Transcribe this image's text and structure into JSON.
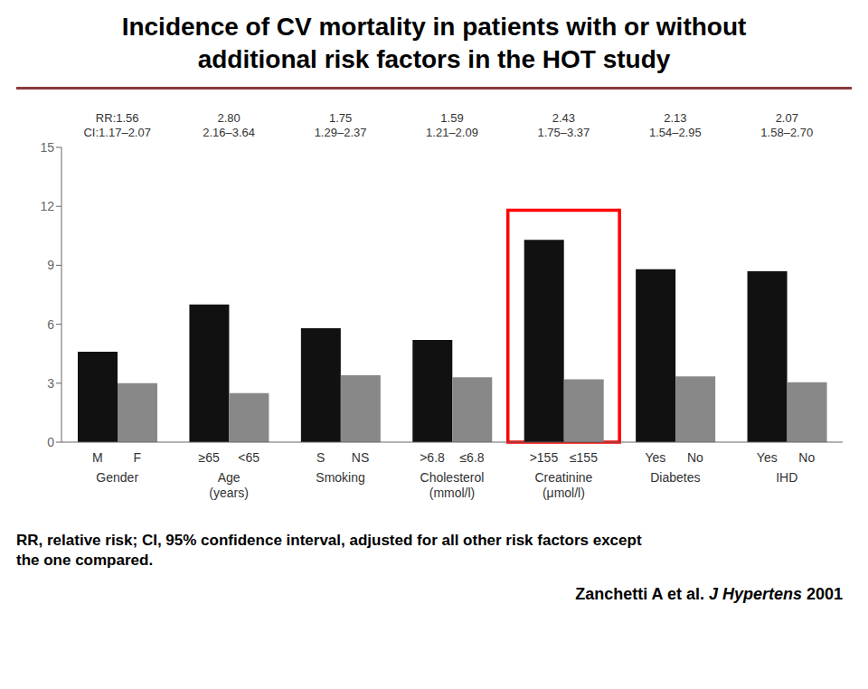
{
  "chart_data": {
    "type": "bar",
    "title": "Incidence of CV mortality in patients with or without\nadditional risk factors in the HOT study",
    "rule_color": "#8B3A3A",
    "categories": [
      "Gender",
      "Age\n(years)",
      "Smoking",
      "Cholesterol\n(mmol/l)",
      "Creatinine\n(μmol/l)",
      "Diabetes",
      "IHD"
    ],
    "series": [
      {
        "color": "#111111",
        "values": [
          4.6,
          7.0,
          5.8,
          5.2,
          10.3,
          8.8,
          8.7
        ],
        "labels": [
          "M",
          "≥65",
          "S",
          ">6.8",
          ">155",
          "Yes",
          "Yes"
        ]
      },
      {
        "color": "#888888",
        "values": [
          3.0,
          2.5,
          3.4,
          3.3,
          3.2,
          3.35,
          3.05
        ],
        "labels": [
          "F",
          "<65",
          "NS",
          "≤6.8",
          "≤155",
          "No",
          "No"
        ]
      }
    ],
    "rr_values": [
      "RR:1.56",
      "2.80",
      "1.75",
      "1.59",
      "2.43",
      "2.13",
      "2.07"
    ],
    "ci_values": [
      "CI:1.17–2.07",
      "2.16–3.64",
      "1.29–2.37",
      "1.21–2.09",
      "1.75–3.37",
      "1.54–2.95",
      "1.58–2.70"
    ],
    "highlight": {
      "category": "Creatinine\n(μmol/l)",
      "top": 11.8,
      "color": "red"
    },
    "ylim": [
      0,
      15
    ],
    "yticks": [
      0,
      3,
      6,
      9,
      12,
      15
    ],
    "grid": false,
    "footnote": "RR, relative risk; CI, 95% confidence interval, adjusted for all other risk factors except\nthe one compared.",
    "citation": [
      "Zanchetti A et al. ",
      "J Hypertens",
      " 2001"
    ]
  }
}
